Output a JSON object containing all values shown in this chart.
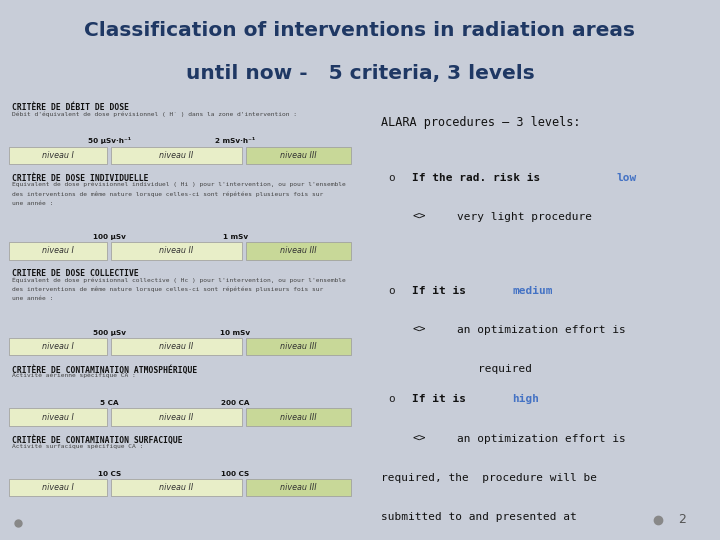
{
  "title_line1": "Classification of interventions in radiation areas",
  "title_line2": "until now -   5 criteria, 3 levels",
  "title_color": "#1F3864",
  "bg_color": "#C8CDD8",
  "left_panel_bg": "#F5F5F2",
  "right_panel_bg": "#F0F0EE",
  "criteria": [
    {
      "title": "CRITÈRE DE DÉBIT DE DOSE",
      "subtitle": "Débit d'équivalent de dose prévisionnel ( Ḣ ) dans la zone d'intervention :",
      "threshold1": "50 μSv·h⁻¹",
      "threshold2": "2 mSv·h⁻¹",
      "levels": [
        "niveau I",
        "niveau II",
        "niveau III"
      ]
    },
    {
      "title": "CRITÈRE DE DOSE INDIVIDUELLE",
      "subtitle": "Equivalent de dose prévisionnel individuel ( Hi ) pour l'intervention, ou pour l'ensemble\ndes interventions de même nature lorsque celles-ci sont répétées plusieurs fois sur\nune année :",
      "threshold1": "100 μSv",
      "threshold2": "1 mSv",
      "levels": [
        "niveau I",
        "niveau II",
        "niveau III"
      ]
    },
    {
      "title": "CRITERE DE DOSE COLLECTIVE",
      "subtitle": "Équivalent de dose prévisionnal collective ( Hc ) pour l'intervention, ou pour l'ensemble\ndes interventions de même nature lorsque celles-ci sont répétées plusieurs fois sur\nune année :",
      "threshold1": "500 μSv",
      "threshold2": "10 mSv",
      "levels": [
        "niveau I",
        "niveau II",
        "niveau III"
      ]
    },
    {
      "title": "CRITÈRE DE CONTAMINATION ATMOSPHÉRIQUE",
      "subtitle": "Activité aérienne spécifique CA :",
      "threshold1": "5 CA",
      "threshold2": "200 CA",
      "levels": [
        "niveau I",
        "niveau II",
        "niveau III"
      ]
    },
    {
      "title": "CRITÈRE DE CONTAMINATION SURFACIQUE",
      "subtitle": "Activité surfacique spécifique CA :",
      "threshold1": "10 CS",
      "threshold2": "100 CS",
      "levels": [
        "niveau I",
        "niveau II",
        "niveau III"
      ]
    }
  ],
  "bar_col_I": "#E8EEC8",
  "bar_col_II": "#E8EEC8",
  "bar_col_III": "#C8D898",
  "alara_header": "ALARA procedures – 3 levels:",
  "slide_number": "2"
}
